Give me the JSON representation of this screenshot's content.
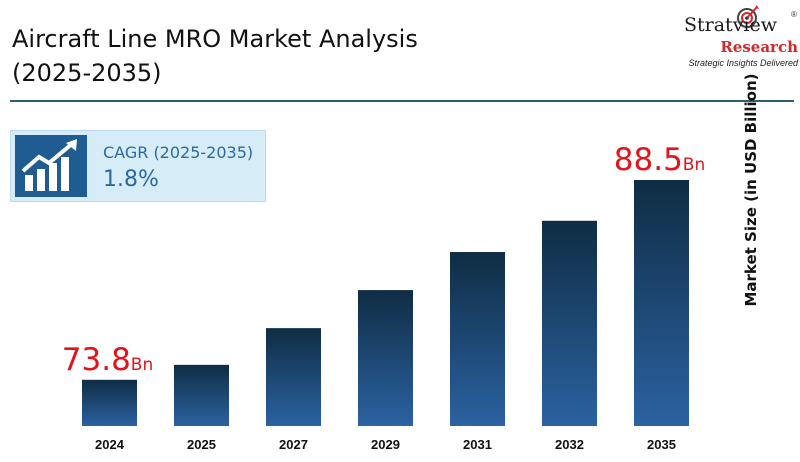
{
  "header": {
    "title": "Aircraft Line MRO Market Analysis (2025-2035)"
  },
  "logo": {
    "brand": "Stratview",
    "registered": "®",
    "research": "Research",
    "tagline": "Strategic Insights Delivered"
  },
  "cagr": {
    "icon": "growth-chart-icon",
    "label": "CAGR (2025-2035)",
    "value": "1.8%"
  },
  "chart_data": {
    "type": "bar",
    "categories": [
      "2024",
      "2025",
      "2027",
      "2029",
      "2031",
      "2032",
      "2035"
    ],
    "values": [
      73.8,
      74.9,
      77.6,
      80.4,
      83.2,
      85.5,
      88.5
    ],
    "ylabel": "Market Size (in USD Billion)",
    "xlabel": "",
    "ylim": [
      70.4,
      89.5
    ],
    "grid": false,
    "annotations": [
      {
        "category": "2024",
        "value": "73.8",
        "unit": "Bn"
      },
      {
        "category": "2035",
        "value": "88.5",
        "unit": "Bn"
      }
    ],
    "colors": {
      "bar_top": "#0f2d44",
      "bar_bottom": "#2b62a1",
      "annotation": "#e3131b"
    }
  }
}
